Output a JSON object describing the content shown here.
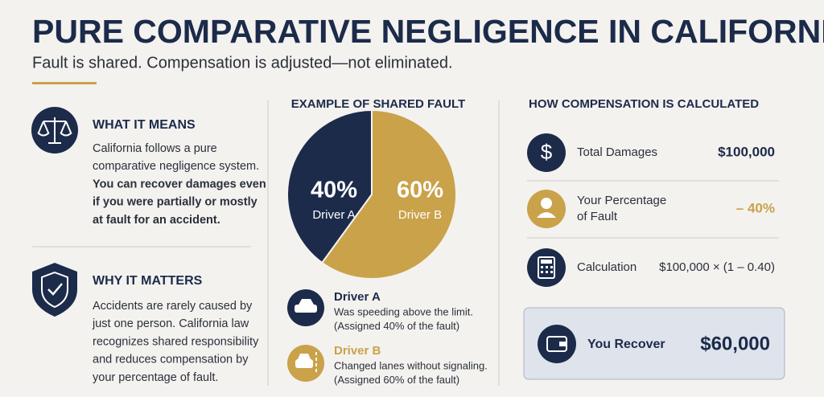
{
  "header": {
    "title": "PURE COMPARATIVE NEGLIGENCE IN CALIFORNIA",
    "subtitle": "Fault is shared. Compensation is adjusted—not eliminated."
  },
  "what_it_means": {
    "heading": "WHAT IT MEANS",
    "lines": [
      "California follows a pure",
      "comparative negligence system."
    ],
    "bold_lines": [
      "You can recover damages even",
      "if you were partially or mostly",
      "at fault for an accident."
    ]
  },
  "why_it_matters": {
    "heading": "WHY IT MATTERS",
    "lines": [
      "Accidents are rarely caused by",
      "just one person. California law",
      "recognizes shared responsibility",
      "and reduces compensation by",
      "your percentage of fault."
    ]
  },
  "chart_data": {
    "type": "pie",
    "title": "EXAMPLE OF SHARED FAULT",
    "categories": [
      "Driver A",
      "Driver B"
    ],
    "values": [
      40,
      60
    ],
    "value_labels": [
      "40%",
      "60%"
    ],
    "colors": [
      "#1c2b4a",
      "#c9a24a"
    ]
  },
  "drivers": [
    {
      "name": "Driver A",
      "lines": [
        "Was speeding above the limit.",
        "(Assigned 40% of the fault)"
      ]
    },
    {
      "name": "Driver B",
      "lines": [
        "Changed lanes without signaling.",
        "(Assigned 60% of the fault)"
      ]
    }
  ],
  "calculation": {
    "heading": "HOW COMPENSATION IS CALCULATED",
    "rows": [
      {
        "label": [
          "Total Damages"
        ],
        "value": "$100,000"
      },
      {
        "label": [
          "Your Percentage",
          "of Fault"
        ],
        "value": "– 40%"
      },
      {
        "label": [
          "Calculation"
        ],
        "value": "$100,000 × (1 – 0.40)"
      }
    ],
    "result": {
      "label": "You Recover",
      "value": "$60,000"
    }
  }
}
